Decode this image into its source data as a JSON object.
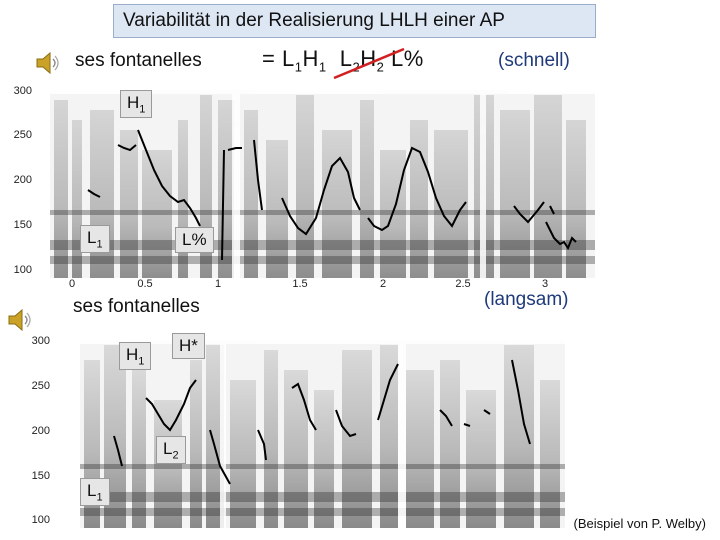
{
  "title": "Variabilität in  der Realisierung LHLH einer AP",
  "top": {
    "word": "ses fontanelles",
    "formula_eq": "= L",
    "formula_h1": "H",
    "formula_l2": "L",
    "formula_h2": "H",
    "formula_end": "L%",
    "sub_1": "1",
    "sub_2": "2",
    "tempo": "(schnell)",
    "y_ticks": [
      "300",
      "250",
      "200",
      "150",
      "100"
    ],
    "x_ticks": [
      "0",
      "0.5",
      "1",
      "1.5",
      "2",
      "2.5",
      "3"
    ],
    "tags": {
      "h1": {
        "letter": "H",
        "sub": "1"
      },
      "l1": {
        "letter": "L",
        "sub": "1"
      },
      "lpct": {
        "text": "L%"
      }
    }
  },
  "bottom": {
    "word": "ses fontanelles",
    "tempo": "(langsam)",
    "y_ticks": [
      "300",
      "250",
      "200",
      "150",
      "100"
    ],
    "tags": {
      "h1": {
        "letter": "H",
        "sub": "1"
      },
      "hstar": {
        "text": "H*"
      },
      "l2": {
        "letter": "L",
        "sub": "2"
      },
      "l1": {
        "letter": "L",
        "sub": "1"
      }
    }
  },
  "credit": "(Beispiel von P. Welby)",
  "icons": [
    "speaker-icon",
    "speaker-icon"
  ],
  "colors": {
    "title_bg": "#dde6f3",
    "strike": "#d21f1f",
    "tempo": "#1f3a7a",
    "pitch": "#000000"
  }
}
